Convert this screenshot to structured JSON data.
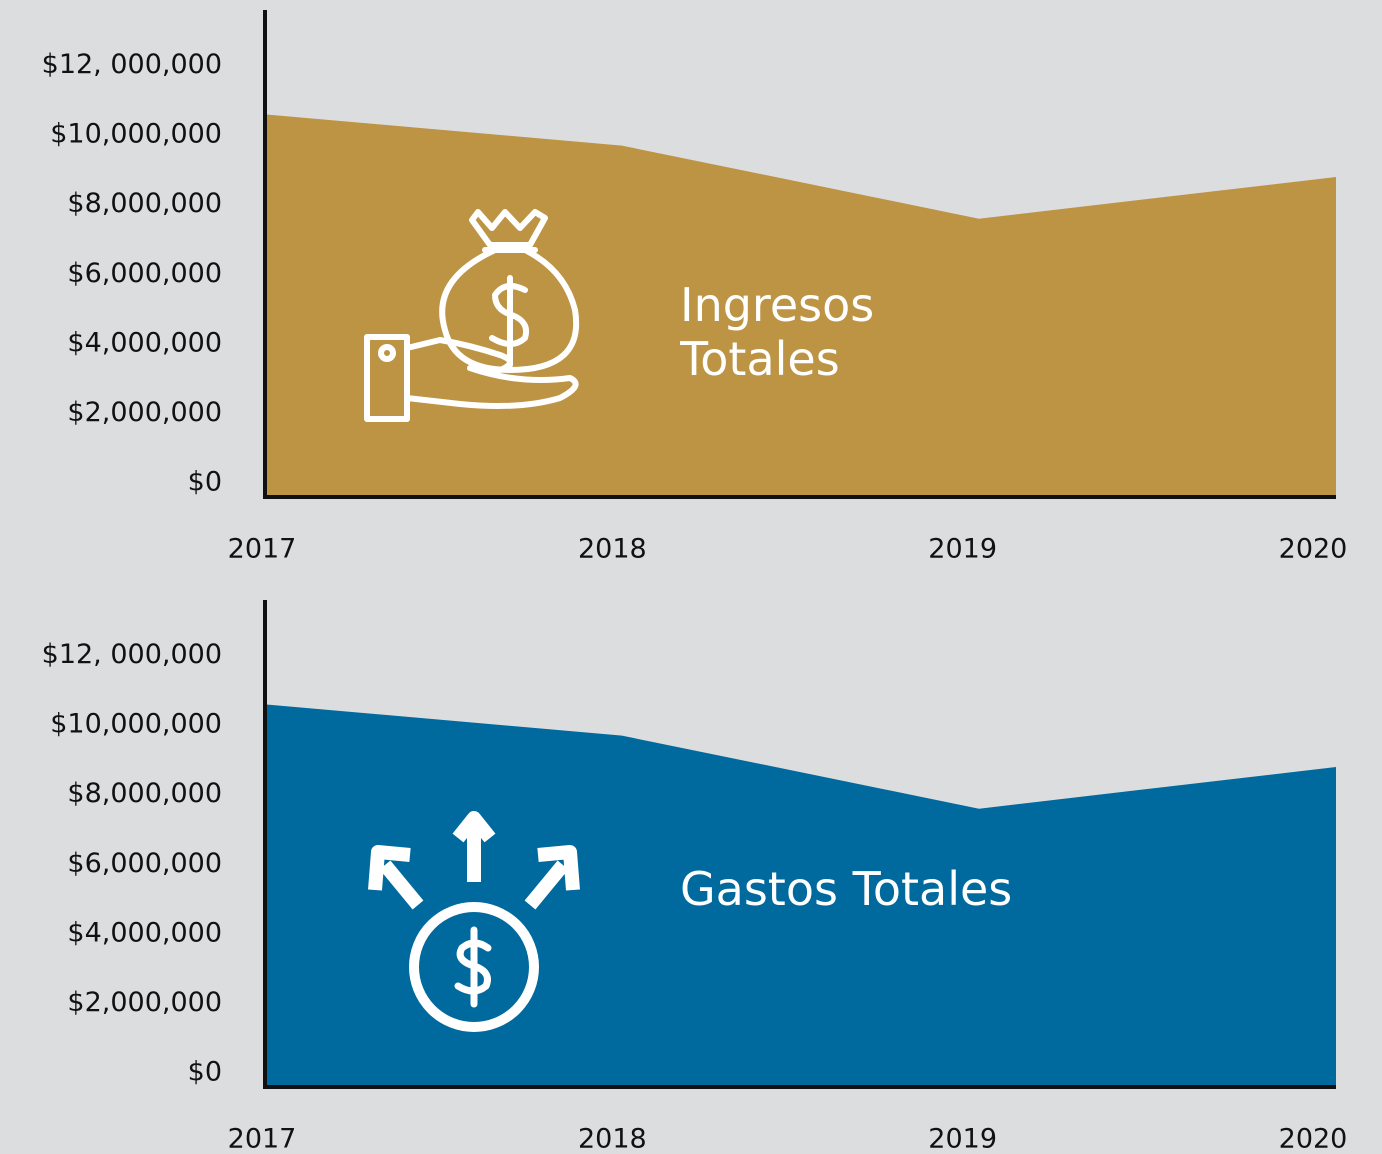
{
  "chart_data": [
    {
      "type": "area",
      "annotation": "Ingresos Totales",
      "categories": [
        "2017",
        "2018",
        "2019",
        "2020"
      ],
      "values": [
        11000000,
        10100000,
        8000000,
        9200000
      ],
      "color": "#bd9344",
      "ylim": [
        0,
        14000000
      ],
      "yticks": [
        {
          "value": 0,
          "label": "$0"
        },
        {
          "value": 2000000,
          "label": "$2,000,000"
        },
        {
          "value": 4000000,
          "label": "$4,000,000"
        },
        {
          "value": 6000000,
          "label": "$6,000,000"
        },
        {
          "value": 8000000,
          "label": "$8,000,000"
        },
        {
          "value": 10000000,
          "label": "$10,000,000"
        },
        {
          "value": 12000000,
          "label": "$12, 000,000"
        }
      ]
    },
    {
      "type": "area",
      "annotation": "Gastos Totales",
      "categories": [
        "2017",
        "2018",
        "2019",
        "2020"
      ],
      "values": [
        11000000,
        10100000,
        8000000,
        9200000
      ],
      "color": "#006a9e",
      "ylim": [
        0,
        14000000
      ],
      "yticks": [
        {
          "value": 0,
          "label": "$0"
        },
        {
          "value": 2000000,
          "label": "$2,000,000"
        },
        {
          "value": 4000000,
          "label": "$4,000,000"
        },
        {
          "value": 6000000,
          "label": "$6,000,000"
        },
        {
          "value": 8000000,
          "label": "$8,000,000"
        },
        {
          "value": 10000000,
          "label": "$10,000,000"
        },
        {
          "value": 12000000,
          "label": "$12, 000,000"
        }
      ]
    }
  ]
}
